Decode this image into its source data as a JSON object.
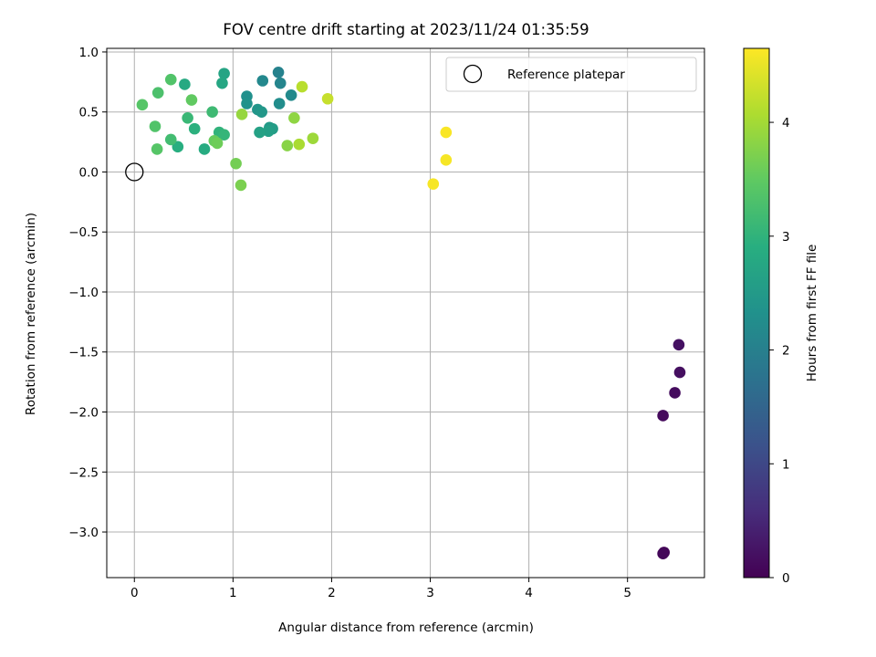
{
  "chart_data": {
    "type": "scatter",
    "title": "FOV centre drift starting at 2023/11/24 01:35:59",
    "xlabel": "Angular distance from reference (arcmin)",
    "ylabel": "Rotation from reference (arcmin)",
    "xlim": [
      -0.28,
      5.78
    ],
    "ylim": [
      -3.38,
      1.03
    ],
    "x_ticks": [
      0,
      1,
      2,
      3,
      4,
      5
    ],
    "y_ticks": [
      1.0,
      0.5,
      0.0,
      -0.5,
      -1.0,
      -1.5,
      -2.0,
      -2.5,
      -3.0
    ],
    "x_tick_labels": [
      "0",
      "1",
      "2",
      "3",
      "4",
      "5"
    ],
    "y_tick_labels": [
      "1.0",
      "0.5",
      "0.0",
      "−0.5",
      "−1.0",
      "−1.5",
      "−2.0",
      "−2.5",
      "−3.0"
    ],
    "grid": true,
    "legend": {
      "placement": "top-right",
      "entries": [
        "Reference platepar"
      ]
    },
    "reference_point": {
      "x": 0,
      "y": 0
    },
    "colorbar": {
      "label": "Hours from first FF file",
      "range": [
        0,
        4.65
      ],
      "ticks": [
        0,
        1,
        2,
        3,
        4
      ],
      "tick_labels": [
        "0",
        "1",
        "2",
        "3",
        "4"
      ],
      "colormap": "viridis"
    },
    "points": [
      {
        "x": 5.37,
        "y": -3.17,
        "h": 0.05
      },
      {
        "x": 5.36,
        "y": -3.18,
        "h": 0.08
      },
      {
        "x": 5.36,
        "y": -2.03,
        "h": 0.12
      },
      {
        "x": 5.48,
        "y": -1.84,
        "h": 0.15
      },
      {
        "x": 5.53,
        "y": -1.67,
        "h": 0.18
      },
      {
        "x": 5.52,
        "y": -1.44,
        "h": 0.21
      },
      {
        "x": 1.46,
        "y": 0.83,
        "h": 2.05
      },
      {
        "x": 1.48,
        "y": 0.74,
        "h": 2.1
      },
      {
        "x": 1.3,
        "y": 0.76,
        "h": 2.15
      },
      {
        "x": 1.59,
        "y": 0.64,
        "h": 2.2
      },
      {
        "x": 1.47,
        "y": 0.57,
        "h": 2.25
      },
      {
        "x": 1.14,
        "y": 0.63,
        "h": 2.3
      },
      {
        "x": 1.14,
        "y": 0.57,
        "h": 2.35
      },
      {
        "x": 1.25,
        "y": 0.52,
        "h": 2.4
      },
      {
        "x": 1.29,
        "y": 0.5,
        "h": 2.45
      },
      {
        "x": 1.37,
        "y": 0.37,
        "h": 2.5
      },
      {
        "x": 1.4,
        "y": 0.36,
        "h": 2.55
      },
      {
        "x": 1.36,
        "y": 0.34,
        "h": 2.6
      },
      {
        "x": 1.27,
        "y": 0.33,
        "h": 2.65
      },
      {
        "x": 0.91,
        "y": 0.82,
        "h": 2.7
      },
      {
        "x": 0.89,
        "y": 0.74,
        "h": 2.75
      },
      {
        "x": 0.51,
        "y": 0.73,
        "h": 2.8
      },
      {
        "x": 0.71,
        "y": 0.19,
        "h": 2.85
      },
      {
        "x": 0.44,
        "y": 0.21,
        "h": 2.9
      },
      {
        "x": 0.61,
        "y": 0.36,
        "h": 2.95
      },
      {
        "x": 0.86,
        "y": 0.33,
        "h": 3.0
      },
      {
        "x": 0.91,
        "y": 0.31,
        "h": 3.05
      },
      {
        "x": 0.54,
        "y": 0.45,
        "h": 3.1
      },
      {
        "x": 0.79,
        "y": 0.5,
        "h": 3.15
      },
      {
        "x": 0.37,
        "y": 0.27,
        "h": 3.2
      },
      {
        "x": 0.24,
        "y": 0.66,
        "h": 3.3
      },
      {
        "x": 0.37,
        "y": 0.77,
        "h": 3.35
      },
      {
        "x": 0.21,
        "y": 0.38,
        "h": 3.35
      },
      {
        "x": 0.23,
        "y": 0.19,
        "h": 3.4
      },
      {
        "x": 0.08,
        "y": 0.56,
        "h": 3.4
      },
      {
        "x": 0.58,
        "y": 0.6,
        "h": 3.5
      },
      {
        "x": 0.81,
        "y": 0.26,
        "h": 3.55
      },
      {
        "x": 0.84,
        "y": 0.24,
        "h": 3.6
      },
      {
        "x": 1.03,
        "y": 0.07,
        "h": 3.65
      },
      {
        "x": 1.08,
        "y": -0.11,
        "h": 3.7
      },
      {
        "x": 1.55,
        "y": 0.22,
        "h": 3.8
      },
      {
        "x": 1.62,
        "y": 0.45,
        "h": 3.85
      },
      {
        "x": 1.09,
        "y": 0.48,
        "h": 3.9
      },
      {
        "x": 1.81,
        "y": 0.28,
        "h": 3.95
      },
      {
        "x": 1.67,
        "y": 0.23,
        "h": 4.05
      },
      {
        "x": 1.7,
        "y": 0.71,
        "h": 4.15
      },
      {
        "x": 1.96,
        "y": 0.61,
        "h": 4.25
      },
      {
        "x": 3.03,
        "y": -0.1,
        "h": 4.6
      },
      {
        "x": 3.16,
        "y": 0.1,
        "h": 4.6
      },
      {
        "x": 3.16,
        "y": 0.33,
        "h": 4.62
      }
    ]
  }
}
